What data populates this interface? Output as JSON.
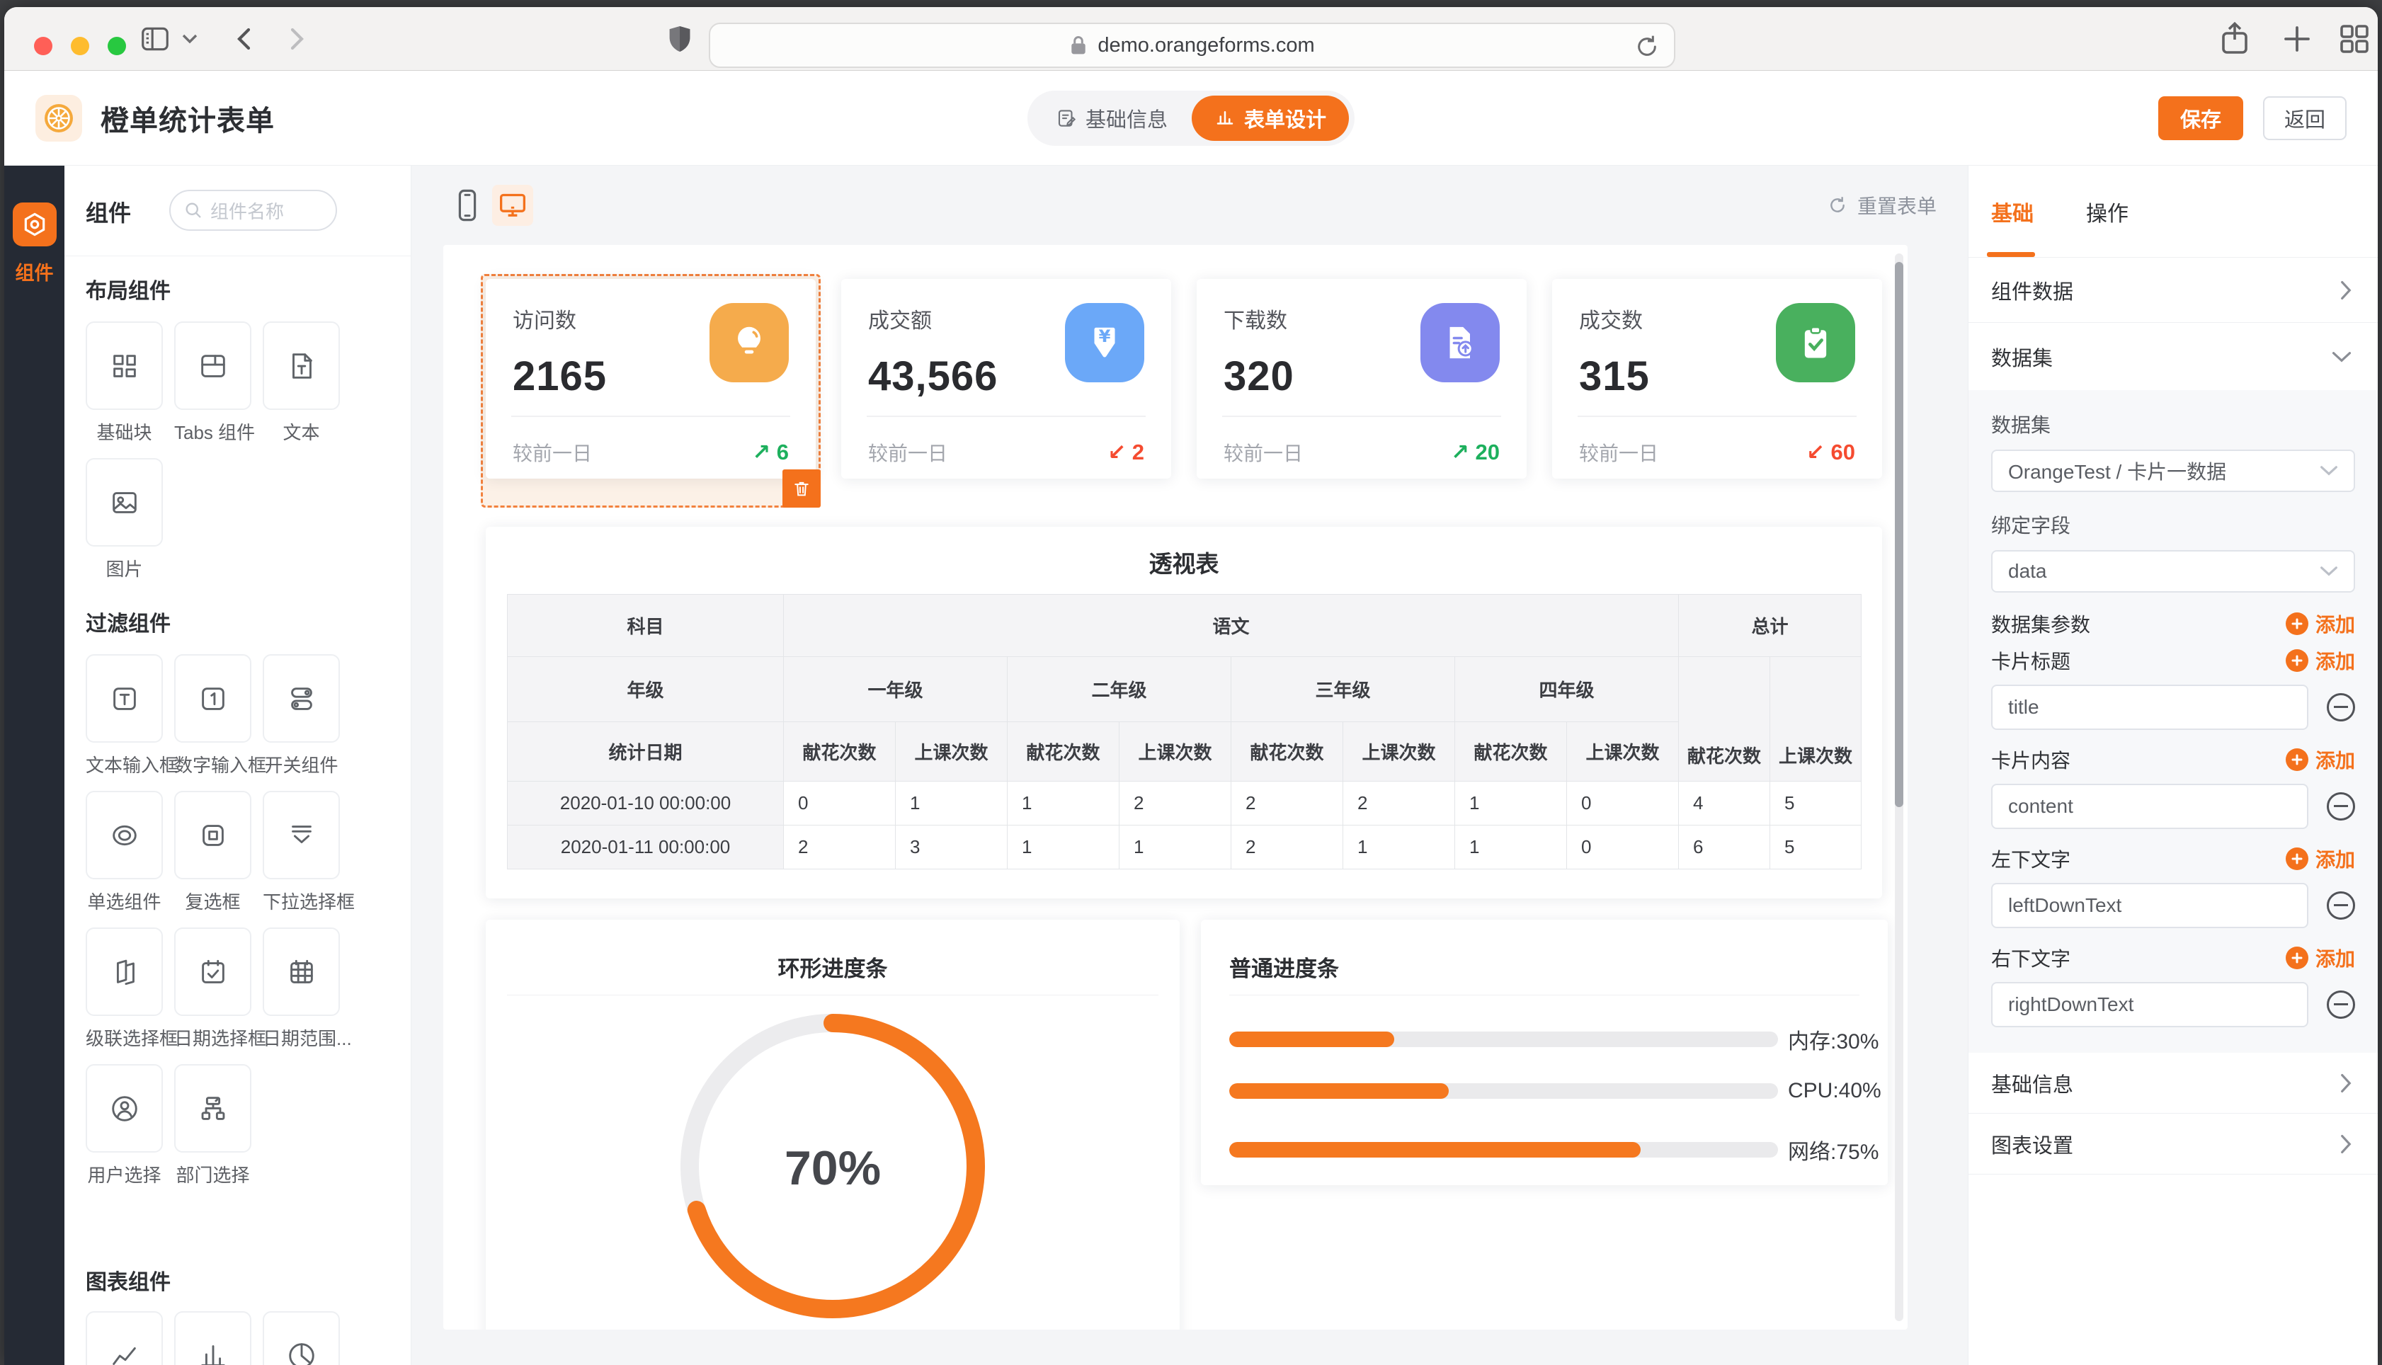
{
  "browser": {
    "url": "demo.orangeforms.com"
  },
  "header": {
    "title": "橙单统计表单",
    "tab_basic": "基础信息",
    "tab_design": "表单设计",
    "save_label": "保存",
    "back_label": "返回"
  },
  "rail": {
    "label": "组件"
  },
  "panel": {
    "title": "组件",
    "search_placeholder": "组件名称",
    "sec_layout": "布局组件",
    "sec_filter": "过滤组件",
    "sec_chart": "图表组件",
    "layout_items": [
      "基础块",
      "Tabs 组件",
      "文本",
      "图片"
    ],
    "filter_items": [
      "文本输入框",
      "数字输入框",
      "开关组件",
      "单选组件",
      "复选框",
      "下拉选择框",
      "级联选择框",
      "日期选择框",
      "日期范围...",
      "用户选择",
      "部门选择"
    ]
  },
  "canvas": {
    "reset_label": "重置表单"
  },
  "cards": [
    {
      "title": "访问数",
      "value": "2165",
      "compare": "较前一日",
      "arrow": "↗",
      "delta": "6",
      "trend": "up",
      "icon_bg": "#f5ab4c"
    },
    {
      "title": "成交额",
      "value": "43,566",
      "compare": "较前一日",
      "arrow": "↙",
      "delta": "2",
      "trend": "down",
      "icon_bg": "#6ba8f8"
    },
    {
      "title": "下载数",
      "value": "320",
      "compare": "较前一日",
      "arrow": "↗",
      "delta": "20",
      "trend": "up",
      "icon_bg": "#8389ee"
    },
    {
      "title": "成交数",
      "value": "315",
      "compare": "较前一日",
      "arrow": "↙",
      "delta": "60",
      "trend": "down",
      "icon_bg": "#49b05e"
    }
  ],
  "pivot": {
    "title": "透视表",
    "corner": "科目",
    "group": "语文",
    "total": "总计",
    "row2_label": "年级",
    "grades": [
      "一年级",
      "二年级",
      "三年级",
      "四年级"
    ],
    "flower": "献花次数",
    "lesson": "上课次数",
    "date_label": "统计日期",
    "rows": [
      {
        "date": "2020-01-10 00:00:00",
        "values": [
          "0",
          "1",
          "1",
          "2",
          "2",
          "2",
          "1",
          "0",
          "4",
          "5"
        ]
      },
      {
        "date": "2020-01-11 00:00:00",
        "values": [
          "2",
          "3",
          "1",
          "1",
          "2",
          "1",
          "1",
          "0",
          "6",
          "5"
        ]
      }
    ]
  },
  "ring": {
    "title": "环形进度条",
    "label": "70%",
    "value": 70
  },
  "progress": {
    "title": "普通进度条",
    "bars": [
      {
        "label": "内存:30%",
        "value": 30
      },
      {
        "label": "CPU:40%",
        "value": 40
      },
      {
        "label": "网络:75%",
        "value": 75
      }
    ]
  },
  "inspector": {
    "tab_basic": "基础",
    "tab_action": "操作",
    "component_data": "组件数据",
    "dataset_section": "数据集",
    "dataset_label": "数据集",
    "dataset_value": "OrangeTest / 卡片一数据",
    "bind_field_label": "绑定字段",
    "bind_field_value": "data",
    "dataset_params_label": "数据集参数",
    "add_label": "添加",
    "card_title_label": "卡片标题",
    "card_title_value": "title",
    "card_content_label": "卡片内容",
    "card_content_value": "content",
    "left_down_label": "左下文字",
    "left_down_value": "leftDownText",
    "right_down_label": "右下文字",
    "right_down_value": "rightDownText",
    "basic_info": "基础信息",
    "chart_settings": "图表设置"
  }
}
